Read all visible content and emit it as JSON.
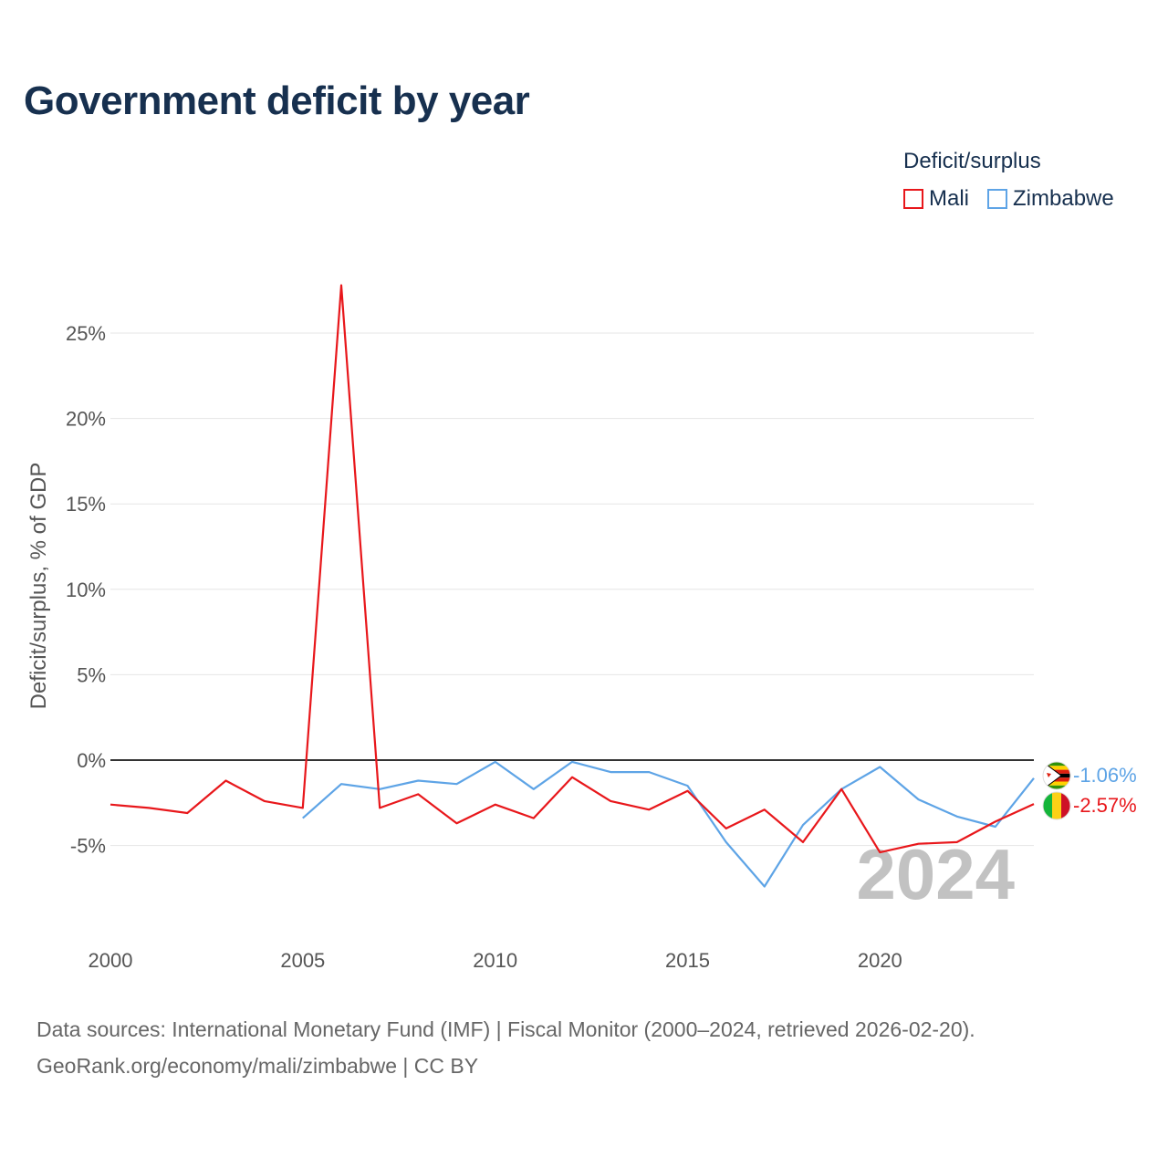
{
  "title": "Government deficit by year",
  "legend": {
    "title": "Deficit/surplus",
    "items": [
      {
        "label": "Mali",
        "color": "#e8171b"
      },
      {
        "label": "Zimbabwe",
        "color": "#5ea4e6"
      }
    ]
  },
  "source": {
    "line1": "Data sources: International Monetary Fund (IMF) | Fiscal Monitor (2000–2024, retrieved 2026-02-20).",
    "line2": "GeoRank.org/economy/mali/zimbabwe | CC BY"
  },
  "chart_data": {
    "type": "line",
    "title": "Government deficit by year",
    "xlabel": "",
    "ylabel": "Deficit/surplus, % of GDP",
    "xlim": [
      2000,
      2024
    ],
    "ylim": [
      -9,
      27
    ],
    "x_ticks": [
      2000,
      2005,
      2010,
      2015,
      2020
    ],
    "x_tick_labels": [
      "2000",
      "2005",
      "2010",
      "2015",
      "2020"
    ],
    "y_ticks": [
      -5,
      0,
      5,
      10,
      15,
      20,
      25
    ],
    "y_tick_labels": [
      "-5%",
      "0%",
      "5%",
      "10%",
      "15%",
      "20%",
      "25%"
    ],
    "grid": true,
    "zero_line": true,
    "legend_position": "top-right",
    "watermark_year": "2024",
    "series": [
      {
        "name": "Mali",
        "color": "#e8171b",
        "flag": "mali-flag-icon",
        "end_label": "-2.57%",
        "x": [
          2000,
          2001,
          2002,
          2003,
          2004,
          2005,
          2006,
          2007,
          2008,
          2009,
          2010,
          2011,
          2012,
          2013,
          2014,
          2015,
          2016,
          2017,
          2018,
          2019,
          2020,
          2021,
          2022,
          2023,
          2024
        ],
        "values": [
          -2.6,
          -2.8,
          -3.1,
          -1.2,
          -2.4,
          -2.8,
          27.8,
          -2.8,
          -2.0,
          -3.7,
          -2.6,
          -3.4,
          -1.0,
          -2.4,
          -2.9,
          -1.8,
          -4.0,
          -2.9,
          -4.8,
          -1.7,
          -5.4,
          -4.9,
          -4.8,
          -3.6,
          -2.57
        ]
      },
      {
        "name": "Zimbabwe",
        "color": "#5ea4e6",
        "flag": "zimbabwe-flag-icon",
        "end_label": "-1.06%",
        "x": [
          2005,
          2006,
          2007,
          2008,
          2009,
          2010,
          2011,
          2012,
          2013,
          2014,
          2015,
          2016,
          2017,
          2018,
          2019,
          2020,
          2021,
          2022,
          2023,
          2024
        ],
        "values": [
          -3.4,
          -1.4,
          -1.7,
          -1.2,
          -1.4,
          -0.1,
          -1.7,
          -0.1,
          -0.7,
          -0.7,
          -1.5,
          -4.8,
          -7.4,
          -3.8,
          -1.7,
          -0.4,
          -2.3,
          -3.3,
          -3.9,
          -1.06
        ]
      }
    ]
  }
}
